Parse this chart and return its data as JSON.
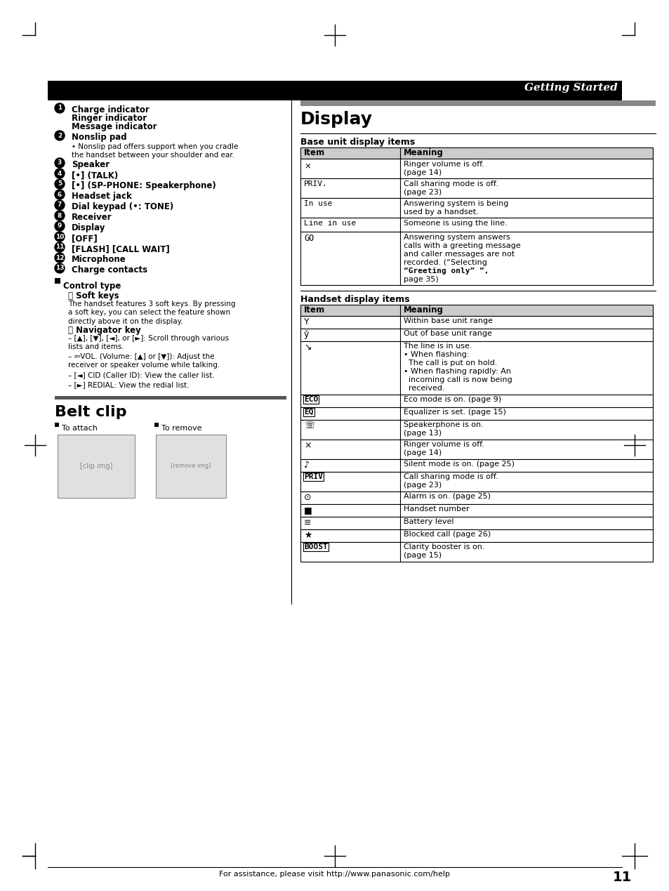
{
  "page_bg": "#ffffff",
  "header_bg": "#000000",
  "header_text": "Getting Started",
  "header_text_color": "#ffffff",
  "section_bar_color": "#888888",
  "table_header_bg": "#cccccc",
  "table_border_color": "#000000",
  "left_column": {
    "numbered_items": [
      {
        "num": 1,
        "lines": [
          "Charge indicator",
          "Ringer indicator",
          "Message indicator"
        ]
      },
      {
        "num": 2,
        "lines": [
          "Nonslip pad"
        ]
      },
      {
        "num": 3,
        "lines": [
          "Speaker"
        ]
      },
      {
        "num": 4,
        "lines": [
          "[•] (TALK)"
        ]
      },
      {
        "num": 5,
        "lines": [
          "[•] (SP-PHONE: Speakerphone)"
        ]
      },
      {
        "num": 6,
        "lines": [
          "Headset jack"
        ]
      },
      {
        "num": 7,
        "lines": [
          "Dial keypad (•: TONE)"
        ]
      },
      {
        "num": 8,
        "lines": [
          "Receiver"
        ]
      },
      {
        "num": 9,
        "lines": [
          "Display"
        ]
      },
      {
        "num": 10,
        "lines": [
          "[OFF]"
        ]
      },
      {
        "num": 11,
        "lines": [
          "[FLASH] [CALL WAIT]"
        ]
      },
      {
        "num": 12,
        "lines": [
          "Microphone"
        ]
      },
      {
        "num": 13,
        "lines": [
          "Charge contacts"
        ]
      }
    ],
    "nonslip_bullet": "Nonslip pad offers support when you cradle\nthe handset between your shoulder and ear.",
    "control_type_title": "Control type",
    "soft_keys_title": "A  Soft keys",
    "soft_keys_text": "The handset features 3 soft keys. By pressing\na soft key, you can select the feature shown\ndirectly above it on the display.",
    "navigator_title": "B  Navigator key",
    "navigator_items": [
      "[▲], [▼], [◄], or [►]: Scroll through various\nlists and items.",
      "⇦VOL. (Volume: [▲] or [▼]): Adjust the\nreceiver or speaker volume while talking.",
      "[◄] CID (Caller ID): View the caller list.",
      "[►] REDIAL: View the redial list."
    ]
  },
  "belt_clip": {
    "title": "Belt clip",
    "to_attach": "To attach",
    "to_remove": "To remove"
  },
  "display": {
    "title": "Display",
    "base_unit_title": "Base unit display items",
    "base_items": [
      {
        "⨯": "Ringer volume is off.\n(page 14)"
      },
      {
        "PRIV.": "Call sharing mode is off.\n(page 23)"
      },
      {
        "In use": "Answering system is being\nused by a handset."
      },
      {
        "Line in use": "Someone is using the line."
      },
      {
        "GO": "Answering system answers\ncalls with a greeting message\nand caller messages are not\nrecorded. (“Selecting\n“Greeting only” ”,\npage 35)"
      }
    ],
    "handset_title": "Handset display items",
    "handset_items": [
      {
        "▼": "Within base unit range"
      },
      {
        "▼̅": "Out of base unit range"
      },
      {
        "↘": "The line is in use.\n• When flashing:\n  The call is put on hold.\n• When flashing rapidly: An\n  incoming call is now being\n  received."
      },
      {
        "ECO": "Eco mode is on. (page 9)"
      },
      {
        "EQ": "Equalizer is set. (page 15)"
      },
      {
        "★": "Speakerphone is on.\n(page 13)"
      },
      {
        "⨯": "Ringer volume is off.\n(page 14)"
      },
      {
        "♥": "Silent mode is on. (page 25)"
      },
      {
        "PRIV": "Call sharing mode is off.\n(page 23)"
      },
      {
        "⊙": "Alarm is on. (page 25)"
      },
      {
        "■": "Handset number"
      },
      {
        "■■": "Battery level"
      },
      {
        "★★": "Blocked call (page 26)"
      },
      {
        "BOOST": "Clarity booster is on.\n(page 15)"
      }
    ]
  },
  "footer_text": "For assistance, please visit http://www.panasonic.com/help",
  "page_number": "11"
}
